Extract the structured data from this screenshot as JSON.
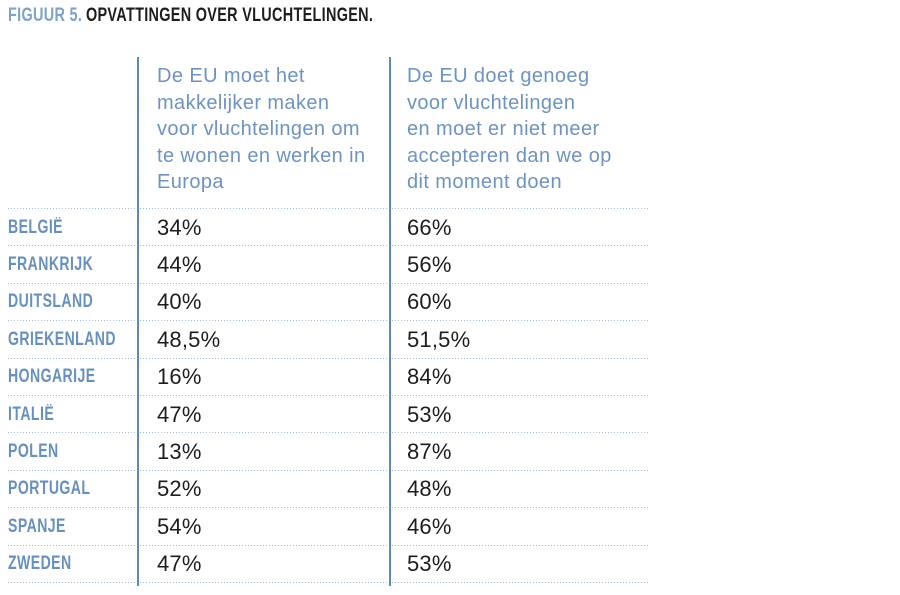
{
  "figure": {
    "label": "FIGUUR 5.",
    "title": "OPVATTINGEN OVER VLUCHTELINGEN."
  },
  "table": {
    "columns": [
      {
        "header": "De EU moet het\nmakkelijker maken\nvoor vluchtelingen om\nte wonen en werken in\nEuropa"
      },
      {
        "header": "De EU doet genoeg\nvoor vluchtelingen\nen moet er niet meer\naccepteren dan we op\ndit moment doen"
      }
    ],
    "rows": [
      {
        "country": "BELGIË",
        "values": [
          "34%",
          "66%"
        ]
      },
      {
        "country": "FRANKRIJK",
        "values": [
          "44%",
          "56%"
        ]
      },
      {
        "country": "DUITSLAND",
        "values": [
          "40%",
          "60%"
        ]
      },
      {
        "country": "GRIEKENLAND",
        "values": [
          "48,5%",
          "51,5%"
        ]
      },
      {
        "country": "HONGARIJE",
        "values": [
          "16%",
          "84%"
        ]
      },
      {
        "country": "ITALIË",
        "values": [
          "47%",
          "53%"
        ]
      },
      {
        "country": "POLEN",
        "values": [
          "13%",
          "87%"
        ]
      },
      {
        "country": "PORTUGAL",
        "values": [
          "52%",
          "48%"
        ]
      },
      {
        "country": "SPANJE",
        "values": [
          "54%",
          "46%"
        ]
      },
      {
        "country": "ZWEDEN",
        "values": [
          "47%",
          "53%"
        ]
      }
    ]
  },
  "colors": {
    "figure_label_blue": "#7da2ca",
    "title_black": "#1d1d1b",
    "header_blue": "#6d93c3",
    "country_blue": "#6690bf",
    "value_black": "#1d1d1b",
    "rule_blue": "#5c89bb",
    "dotted_rule": "#a2bbd4"
  },
  "chart_data": {
    "type": "table",
    "title": "FIGUUR 5. OPVATTINGEN OVER VLUCHTELINGEN.",
    "categories": [
      "België",
      "Frankrijk",
      "Duitsland",
      "Griekenland",
      "Hongarije",
      "Italië",
      "Polen",
      "Portugal",
      "Spanje",
      "Zweden"
    ],
    "series": [
      {
        "name": "De EU moet het makkelijker maken voor vluchtelingen om te wonen en werken in Europa",
        "values": [
          34,
          44,
          40,
          48.5,
          16,
          47,
          13,
          52,
          54,
          47
        ]
      },
      {
        "name": "De EU doet genoeg voor vluchtelingen en moet er niet meer accepteren dan we op dit moment doen",
        "values": [
          66,
          56,
          60,
          51.5,
          84,
          53,
          87,
          48,
          46,
          53
        ]
      }
    ],
    "unit": "%",
    "grid": "dotted horizontal row separators, solid vertical column rules",
    "legend_position": "none"
  }
}
